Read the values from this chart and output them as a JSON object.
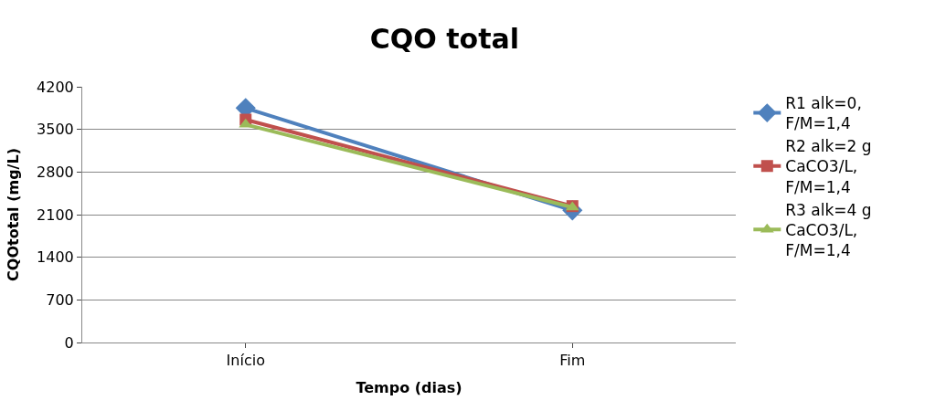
{
  "chart_data": {
    "type": "line",
    "title": "CQO total",
    "xlabel": "Tempo (dias)",
    "ylabel": "CQOtotal (mg/L)",
    "categories": [
      "Início",
      "Fim"
    ],
    "series": [
      {
        "name": "R1 alk=0, F/M=1,4",
        "color": "#4f81bd",
        "marker": "diamond",
        "values": [
          3850,
          2170
        ]
      },
      {
        "name": "R2 alk=2 g CaCO3/L, F/M=1,4",
        "color": "#c0504d",
        "marker": "square",
        "values": [
          3660,
          2240
        ]
      },
      {
        "name": "R3 alk=4 g CaCO3/L, F/M=1,4",
        "color": "#9bbb59",
        "marker": "triangle",
        "values": [
          3580,
          2220
        ]
      }
    ],
    "ylim": [
      0,
      4200
    ],
    "yticks": [
      0,
      700,
      1400,
      2100,
      2800,
      3500,
      4200
    ],
    "grid": "y",
    "legend": "right",
    "line_style": "solid"
  }
}
